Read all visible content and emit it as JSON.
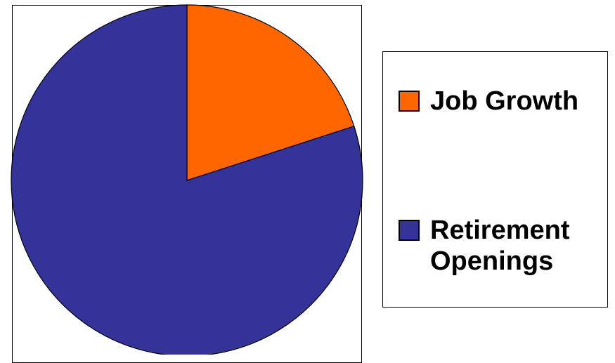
{
  "chart_data": {
    "type": "pie",
    "categories": [
      "Job Growth",
      "Retirement Openings"
    ],
    "values": [
      20,
      80
    ],
    "colors": [
      "#ff6600",
      "#333399"
    ],
    "title": "",
    "legend_placement": "right"
  },
  "legend": {
    "items": [
      {
        "label": "Job Growth",
        "color": "#ff6600"
      },
      {
        "label": "Retirement Openings",
        "color": "#333399"
      }
    ]
  }
}
